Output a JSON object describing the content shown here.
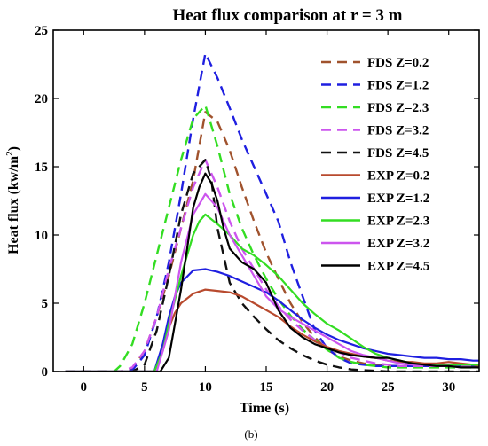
{
  "chart_data": {
    "type": "line",
    "title": "Heat flux comparison at r = 3 m",
    "xlabel": "Time (s)",
    "ylabel": "Heat flux (kw/m",
    "ylabel_sup": "2",
    "ylabel_close": ")",
    "caption": "(b)",
    "xlim": [
      -2.5,
      32.5
    ],
    "ylim": [
      0,
      25
    ],
    "xticks": [
      0,
      5,
      10,
      15,
      20,
      25,
      30
    ],
    "yticks": [
      0,
      5,
      10,
      15,
      20,
      25
    ],
    "grid": false,
    "legend_position": "top-right",
    "series": [
      {
        "name": "FDS Z=0.2",
        "color": "#a0522d",
        "dash": true,
        "x": [
          -1.5,
          3,
          4,
          5,
          6,
          7,
          8,
          9,
          10,
          11,
          12,
          13,
          14,
          15,
          16,
          17,
          18,
          19,
          20,
          21,
          22,
          23,
          24,
          25,
          26,
          27,
          28,
          29,
          30,
          31,
          32.5
        ],
        "y": [
          0,
          0,
          0.2,
          1.5,
          4,
          7,
          10.5,
          14,
          19,
          18.3,
          16.2,
          13.5,
          11,
          8.7,
          6.8,
          5,
          3.6,
          2.5,
          1.6,
          1.1,
          0.8,
          0.6,
          0.5,
          0.4,
          0.4,
          0.4,
          0.4,
          0.4,
          0.4,
          0.4,
          0.4
        ]
      },
      {
        "name": "FDS Z=1.2",
        "color": "#1f1fe0",
        "dash": true,
        "x": [
          -1.5,
          3,
          4,
          5,
          6,
          7,
          8,
          9,
          10,
          11,
          12,
          13,
          14,
          15,
          16,
          17,
          18,
          19,
          20,
          21,
          22,
          23,
          24,
          25,
          26,
          27,
          28,
          29,
          30,
          31,
          32.5
        ],
        "y": [
          0,
          0,
          0.1,
          1.2,
          4,
          8,
          13,
          18.5,
          23.3,
          21.5,
          19.3,
          17,
          15,
          13,
          11,
          8,
          5.5,
          3,
          1.7,
          1,
          0.6,
          0.5,
          0.4,
          0.4,
          0.4,
          0.4,
          0.4,
          0.4,
          0.4,
          0.4,
          0.4
        ]
      },
      {
        "name": "FDS Z=2.3",
        "color": "#33dd22",
        "dash": true,
        "x": [
          -1.5,
          2.5,
          3,
          4,
          5,
          6,
          7,
          8,
          9,
          10,
          11,
          12,
          13,
          14,
          15,
          16,
          17,
          18,
          19,
          20,
          21,
          22,
          23,
          24,
          25,
          26,
          27,
          28,
          29,
          30,
          31,
          32.5
        ],
        "y": [
          0,
          0,
          0.4,
          2,
          5,
          8.5,
          12,
          15.5,
          18.5,
          19.5,
          16.5,
          13,
          10.5,
          8.5,
          6.8,
          5.3,
          4.1,
          3.1,
          2.3,
          1.6,
          1,
          0.7,
          0.5,
          0.4,
          0.3,
          0.3,
          0.3,
          0.3,
          0.3,
          0.3,
          0.3,
          0.3
        ]
      },
      {
        "name": "FDS Z=3.2",
        "color": "#cc55ee",
        "dash": true,
        "x": [
          -1.5,
          3,
          4,
          5,
          6,
          7,
          8,
          9,
          10,
          11,
          12,
          13,
          14,
          15,
          16,
          17,
          18,
          19,
          20,
          21,
          22,
          23,
          24,
          25,
          26,
          27,
          28,
          29,
          30,
          31,
          32.5
        ],
        "y": [
          0,
          0,
          0.3,
          1.5,
          4,
          7.5,
          10.5,
          13.5,
          15.5,
          13.5,
          11,
          9,
          7.5,
          6,
          4.8,
          3.8,
          3,
          2.3,
          1.8,
          1.4,
          1,
          0.8,
          0.6,
          0.5,
          0.4,
          0.4,
          0.4,
          0.4,
          0.4,
          0.4,
          0.4
        ]
      },
      {
        "name": "FDS Z=4.5",
        "color": "#111111",
        "dash": true,
        "x": [
          -1.5,
          4,
          5,
          6,
          7,
          8,
          9,
          10,
          10.5,
          11,
          12,
          13,
          14,
          15,
          16,
          17,
          18,
          19,
          20,
          21,
          22,
          23,
          24,
          25,
          26,
          27,
          28,
          29,
          30,
          31,
          32.5
        ],
        "y": [
          0,
          0,
          0.5,
          3,
          7,
          11.5,
          14.5,
          15.5,
          14,
          10.5,
          6.5,
          5,
          4,
          3.1,
          2.3,
          1.7,
          1.2,
          0.8,
          0.5,
          0.3,
          0.15,
          0.1,
          0.05,
          0,
          0,
          0,
          0,
          0,
          0,
          0,
          0
        ]
      },
      {
        "name": "EXP Z=0.2",
        "color": "#b84a2e",
        "dash": false,
        "x": [
          -1.5,
          5.8,
          6.5,
          7,
          7.5,
          8,
          9,
          10,
          11,
          12,
          13,
          14,
          15,
          16,
          17,
          18,
          19,
          20,
          21,
          22,
          23,
          24,
          25,
          26,
          27,
          28,
          29,
          30,
          31,
          32,
          32.5
        ],
        "y": [
          0,
          0,
          1.5,
          3.2,
          4.3,
          5,
          5.7,
          6,
          5.9,
          5.8,
          5.5,
          5,
          4.5,
          4,
          3.3,
          2.7,
          2.2,
          1.8,
          1.5,
          1.3,
          1.1,
          1,
          0.8,
          0.7,
          0.7,
          0.6,
          0.6,
          0.7,
          0.6,
          0.5,
          0.4
        ]
      },
      {
        "name": "EXP Z=1.2",
        "color": "#1f1fe0",
        "dash": false,
        "x": [
          -1.5,
          5.8,
          6.5,
          7,
          7.5,
          8,
          9,
          10,
          11,
          12,
          13,
          14,
          15,
          16,
          17,
          18,
          19,
          20,
          21,
          22,
          23,
          24,
          25,
          26,
          27,
          28,
          29,
          30,
          31,
          32,
          32.5
        ],
        "y": [
          0,
          0,
          2,
          4,
          5.5,
          6.5,
          7.4,
          7.5,
          7.3,
          7,
          6.6,
          6.2,
          5.8,
          5.2,
          4.5,
          3.8,
          3.2,
          2.7,
          2.3,
          2,
          1.7,
          1.5,
          1.3,
          1.2,
          1.1,
          1,
          1,
          0.9,
          0.9,
          0.8,
          0.8
        ]
      },
      {
        "name": "EXP Z=2.3",
        "color": "#33dd22",
        "dash": false,
        "x": [
          -1.5,
          5.8,
          6.5,
          7,
          8,
          9,
          9.5,
          10,
          11,
          12,
          13,
          14,
          15,
          16,
          17,
          18,
          19,
          20,
          21,
          22,
          23,
          24,
          25,
          26,
          27,
          28,
          29,
          30,
          31,
          32,
          32.5
        ],
        "y": [
          0,
          0,
          1.5,
          3.5,
          7,
          10,
          11,
          11.5,
          10.8,
          10,
          9,
          8.5,
          7.8,
          7,
          6,
          5,
          4.2,
          3.5,
          3,
          2.4,
          1.8,
          1.3,
          1,
          0.8,
          0.6,
          0.5,
          0.5,
          0.5,
          0.5,
          0.5,
          0.5
        ]
      },
      {
        "name": "EXP Z=3.2",
        "color": "#cc55ee",
        "dash": false,
        "x": [
          -1.5,
          6,
          7,
          8,
          9,
          10,
          11,
          12,
          13,
          14,
          15,
          16,
          17,
          18,
          19,
          20,
          21,
          22,
          23,
          24,
          25,
          26,
          27,
          28,
          29,
          30,
          31,
          32,
          32.5
        ],
        "y": [
          0,
          0,
          3,
          8,
          11.5,
          13,
          12,
          10,
          8.5,
          7,
          5.5,
          4.6,
          4,
          3.5,
          3,
          2.5,
          2,
          1.5,
          1.2,
          1,
          0.8,
          0.6,
          0.5,
          0.5,
          0.4,
          0.4,
          0.3,
          0.3,
          0.3
        ]
      },
      {
        "name": "EXP Z=4.5",
        "color": "#000000",
        "dash": false,
        "x": [
          -1.5,
          6.3,
          7,
          8,
          8.5,
          9,
          9.5,
          10,
          10.5,
          11,
          11.5,
          12,
          13,
          14,
          15,
          16,
          17,
          18,
          19,
          20,
          21,
          22,
          23,
          24,
          25,
          26,
          27,
          28,
          29,
          30,
          31,
          32,
          32.5
        ],
        "y": [
          0,
          0,
          1,
          6,
          9,
          12,
          13.5,
          14.5,
          13.8,
          12.5,
          10.5,
          9,
          8,
          7.5,
          6.5,
          4.5,
          3.2,
          2.5,
          2,
          1.7,
          1.4,
          1.2,
          1.1,
          1,
          1,
          0.8,
          0.6,
          0.5,
          0.4,
          0.4,
          0.3,
          0.3,
          0.3
        ]
      }
    ]
  }
}
